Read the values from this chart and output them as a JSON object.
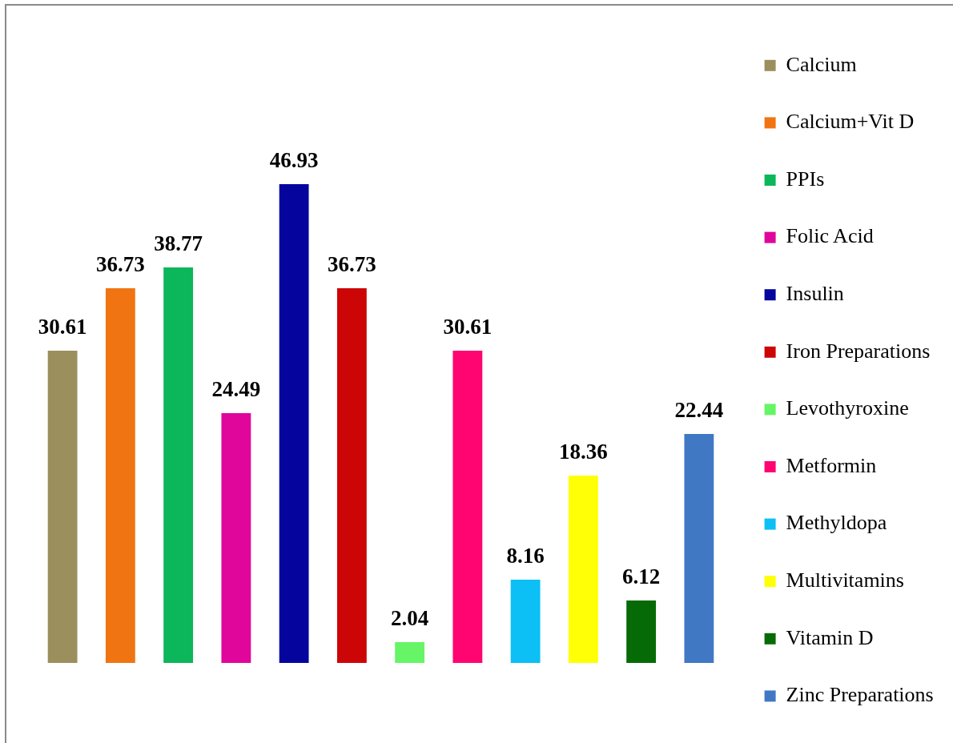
{
  "chart_data": {
    "type": "bar",
    "categories": [
      null,
      null,
      null,
      null,
      null,
      null,
      null,
      null,
      null,
      null,
      null,
      null
    ],
    "series": [
      {
        "name": "Calcium",
        "color": "#9c8f5e",
        "values": [
          30.61,
          null,
          null,
          null,
          null,
          null,
          null,
          null,
          null,
          null,
          null,
          null
        ]
      },
      {
        "name": "Calcium+Vit D",
        "color": "#f07512",
        "values": [
          null,
          36.73,
          null,
          null,
          null,
          null,
          null,
          null,
          null,
          null,
          null,
          null
        ]
      },
      {
        "name": "PPIs",
        "color": "#0cb65a",
        "values": [
          null,
          null,
          38.77,
          null,
          null,
          null,
          null,
          null,
          null,
          null,
          null,
          null
        ]
      },
      {
        "name": "Folic Acid",
        "color": "#e0069c",
        "values": [
          null,
          null,
          null,
          24.49,
          null,
          null,
          null,
          null,
          null,
          null,
          null,
          null
        ]
      },
      {
        "name": "Insulin",
        "color": "#05059e",
        "values": [
          null,
          null,
          null,
          null,
          46.93,
          null,
          null,
          null,
          null,
          null,
          null,
          null
        ]
      },
      {
        "name": "Iron Preparations",
        "color": "#cc0606",
        "values": [
          null,
          null,
          null,
          null,
          null,
          36.73,
          null,
          null,
          null,
          null,
          null,
          null
        ]
      },
      {
        "name": "Levothyroxine",
        "color": "#66f566",
        "values": [
          null,
          null,
          null,
          null,
          null,
          null,
          2.04,
          null,
          null,
          null,
          null,
          null
        ]
      },
      {
        "name": "Metformin",
        "color": "#ff0571",
        "values": [
          null,
          null,
          null,
          null,
          null,
          null,
          null,
          30.61,
          null,
          null,
          null,
          null
        ]
      },
      {
        "name": "Methyldopa",
        "color": "#0cbff5",
        "values": [
          null,
          null,
          null,
          null,
          null,
          null,
          null,
          null,
          8.16,
          null,
          null,
          null
        ]
      },
      {
        "name": "Multivitamins",
        "color": "#ffff05",
        "values": [
          null,
          null,
          null,
          null,
          null,
          null,
          null,
          null,
          null,
          18.36,
          null,
          null
        ]
      },
      {
        "name": "Vitamin D",
        "color": "#066b06",
        "values": [
          null,
          null,
          null,
          null,
          null,
          null,
          null,
          null,
          null,
          null,
          6.12,
          null
        ]
      },
      {
        "name": "Zinc Preparations",
        "color": "#4178c4",
        "values": [
          null,
          null,
          null,
          null,
          null,
          null,
          null,
          null,
          null,
          null,
          null,
          22.44
        ]
      }
    ],
    "stacked": true,
    "ylim": [
      0,
      64.5
    ],
    "tick_labels": false,
    "legend": "right",
    "data_labels": true
  }
}
